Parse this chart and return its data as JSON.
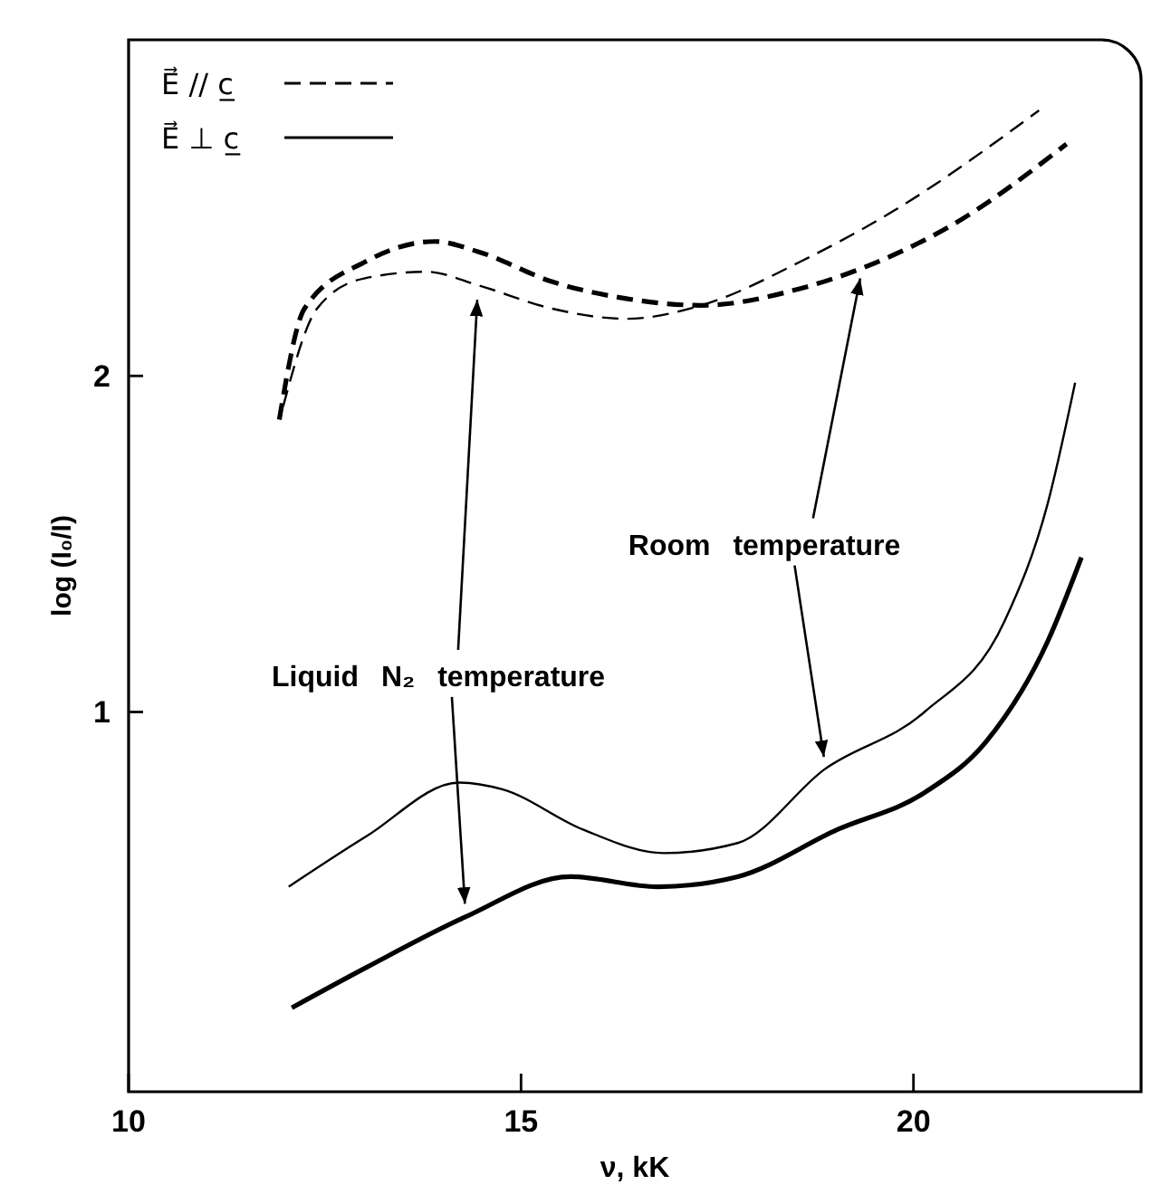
{
  "chart_data": {
    "type": "line",
    "xlabel": "ν, kK",
    "ylabel": "log (I₀/I)",
    "xlim": [
      10,
      22.9
    ],
    "ylim": [
      -0.13,
      3.0
    ],
    "xticks": [
      10,
      15,
      20
    ],
    "yticks": [
      1,
      2
    ],
    "legend": "top left",
    "series": [
      {
        "name": "E⃗ // c̲",
        "color": "#000000",
        "line_style": "dashed",
        "x": [
          11.92,
          12.24,
          13.02,
          13.9,
          14.45,
          15.4,
          16.34,
          17.3,
          18.56,
          19.34,
          20.5,
          21.95
        ],
        "values": [
          1.87,
          2.2,
          2.34,
          2.4,
          2.37,
          2.28,
          2.23,
          2.21,
          2.26,
          2.32,
          2.45,
          2.69
        ]
      },
      {
        "color": "#000000",
        "line_style": "dashed",
        "x": [
          11.97,
          12.4,
          13.0,
          13.8,
          14.45,
          15.4,
          16.34,
          17.3,
          18.56,
          19.74,
          21.6
        ],
        "values": [
          1.91,
          2.2,
          2.29,
          2.31,
          2.27,
          2.2,
          2.17,
          2.21,
          2.34,
          2.49,
          2.79
        ]
      },
      {
        "name": "E⃗ ⊥ c̲",
        "color": "#000000",
        "line_style": "solid",
        "x": [
          12.08,
          13.03,
          14.29,
          15.63,
          16.74,
          17.76,
          19.03,
          20.14,
          20.92,
          21.71,
          22.14
        ],
        "values": [
          0.12,
          0.24,
          0.39,
          0.51,
          0.48,
          0.51,
          0.65,
          0.76,
          0.91,
          1.21,
          1.46
        ]
      },
      {
        "color": "#000000",
        "line_style": "solid",
        "x": [
          12.04,
          13.03,
          14.21,
          14.76,
          15.79,
          16.82,
          17.76,
          18.87,
          20.14,
          21.16,
          21.71,
          22.06
        ],
        "values": [
          0.48,
          0.63,
          0.79,
          0.77,
          0.65,
          0.58,
          0.61,
          0.83,
          1.0,
          1.27,
          1.62,
          1.98
        ]
      }
    ],
    "annotations": [
      {
        "text": "Room temperature",
        "x": 19.34,
        "y": 2.32
      },
      {
        "text": "Liquid N₂ temperature",
        "x": 14.45,
        "y": 2.27
      }
    ]
  }
}
